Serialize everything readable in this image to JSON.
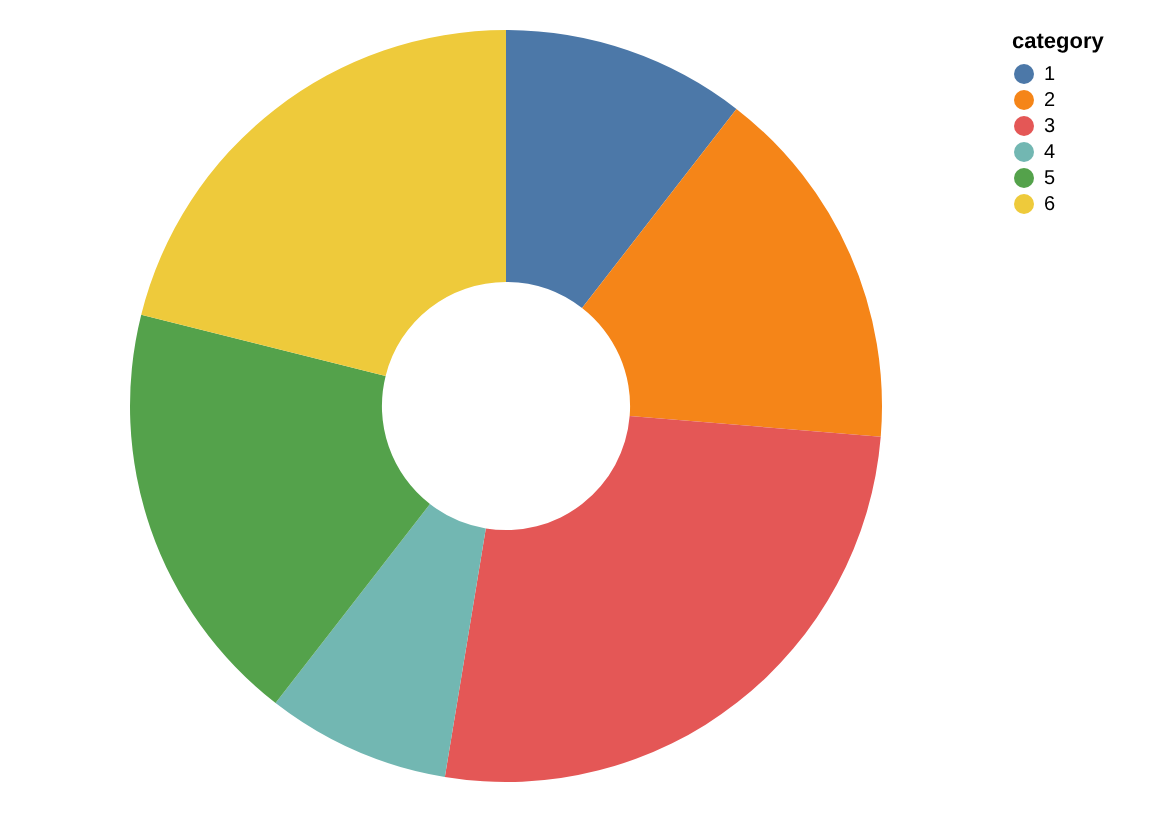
{
  "chart_data": {
    "type": "donut",
    "categories": [
      "1",
      "2",
      "3",
      "4",
      "5",
      "6"
    ],
    "values": [
      10.5,
      15.8,
      26.3,
      7.9,
      18.4,
      21.1
    ],
    "colors": [
      "#4c78a8",
      "#f58518",
      "#e45756",
      "#72b7b2",
      "#54a24b",
      "#eeca3b"
    ],
    "legend_title": "category",
    "legend": "right"
  }
}
